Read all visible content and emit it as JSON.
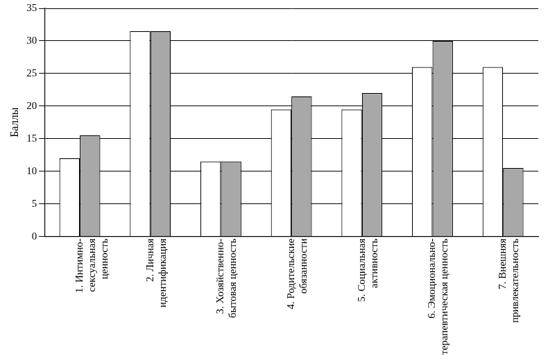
{
  "chart_data": {
    "type": "bar",
    "y_label": "Баллы",
    "categories": [
      [
        "1. Интимно-",
        "сексуальная",
        "ценность"
      ],
      [
        "2. Личная",
        "идентификация"
      ],
      [
        "3. Хозяйственно-",
        "бытовая ценность"
      ],
      [
        "4. Родительские",
        "обязанности"
      ],
      [
        "5. Социальная",
        "активность"
      ],
      [
        "6. Эмоционально-",
        "терапевтическая ценность"
      ],
      [
        "7. Внешняя",
        "привлекательность"
      ]
    ],
    "series": [
      {
        "color": "#ffffff",
        "values": [
          12,
          31.5,
          11.5,
          19.5,
          19.5,
          26,
          26
        ]
      },
      {
        "color": "#a8a8a8",
        "values": [
          15.5,
          31.5,
          11.5,
          21.5,
          22,
          30,
          10.5
        ]
      }
    ],
    "ylim": [
      0,
      35
    ],
    "yticks": [
      0,
      5,
      10,
      15,
      20,
      25,
      30,
      35
    ],
    "grid": true
  }
}
